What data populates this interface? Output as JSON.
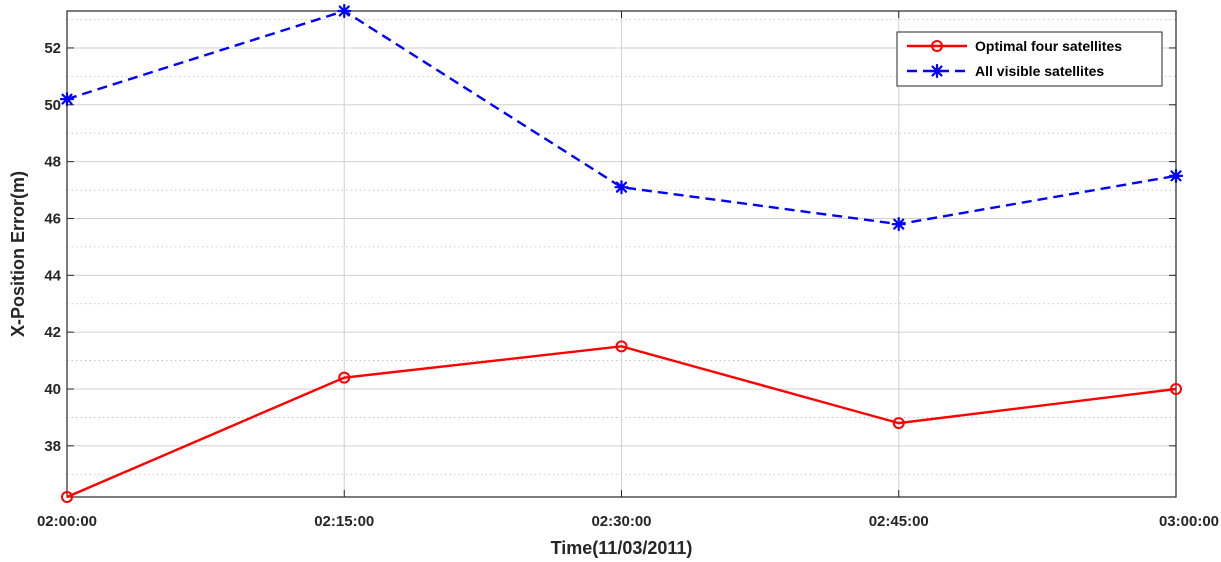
{
  "chart_data": {
    "type": "line",
    "xlabel": "Time(11/03/2011)",
    "ylabel": "X-Position Error(m)",
    "categories": [
      "02:00:00",
      "02:15:00",
      "02:30:00",
      "02:45:00",
      "03:00:00"
    ],
    "ylim": [
      36.2,
      53.3
    ],
    "yticks": [
      38,
      40,
      42,
      44,
      46,
      48,
      50,
      52
    ],
    "grid": true,
    "legend_position": "top-right",
    "series": [
      {
        "name": "Optimal four satellites",
        "color": "#ff0000",
        "line_style": "solid",
        "marker": "circle",
        "values": [
          36.2,
          40.4,
          41.5,
          38.8,
          40.0
        ]
      },
      {
        "name": "All visible satellites",
        "color": "#0000ff",
        "line_style": "dashed",
        "marker": "asterisk",
        "values": [
          50.2,
          53.3,
          47.1,
          45.8,
          47.5
        ]
      }
    ]
  }
}
